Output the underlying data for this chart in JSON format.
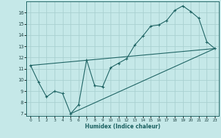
{
  "xlabel": "Humidex (Indice chaleur)",
  "background_color": "#c5e8e8",
  "grid_color": "#a8d0d0",
  "line_color": "#1a6060",
  "xlim": [
    -0.5,
    23.5
  ],
  "ylim": [
    6.8,
    17.0
  ],
  "yticks": [
    7,
    8,
    9,
    10,
    11,
    12,
    13,
    14,
    15,
    16
  ],
  "xticks": [
    0,
    1,
    2,
    3,
    4,
    5,
    6,
    7,
    8,
    9,
    10,
    11,
    12,
    13,
    14,
    15,
    16,
    17,
    18,
    19,
    20,
    21,
    22,
    23
  ],
  "zigzag_x": [
    0,
    1,
    2,
    3,
    4,
    5,
    6,
    7,
    8,
    9,
    10,
    11,
    12,
    13,
    14,
    15,
    16,
    17,
    18,
    19,
    20,
    21,
    22,
    23
  ],
  "zigzag_y": [
    11.3,
    9.8,
    8.5,
    9.0,
    8.8,
    7.0,
    7.8,
    11.8,
    9.5,
    9.4,
    11.1,
    11.5,
    11.9,
    13.1,
    13.9,
    14.8,
    14.9,
    15.3,
    16.2,
    16.6,
    16.1,
    15.5,
    13.4,
    12.8
  ],
  "trend1_x": [
    0,
    23
  ],
  "trend1_y": [
    11.3,
    12.8
  ],
  "trend2_x": [
    5,
    23
  ],
  "trend2_y": [
    7.0,
    12.8
  ]
}
